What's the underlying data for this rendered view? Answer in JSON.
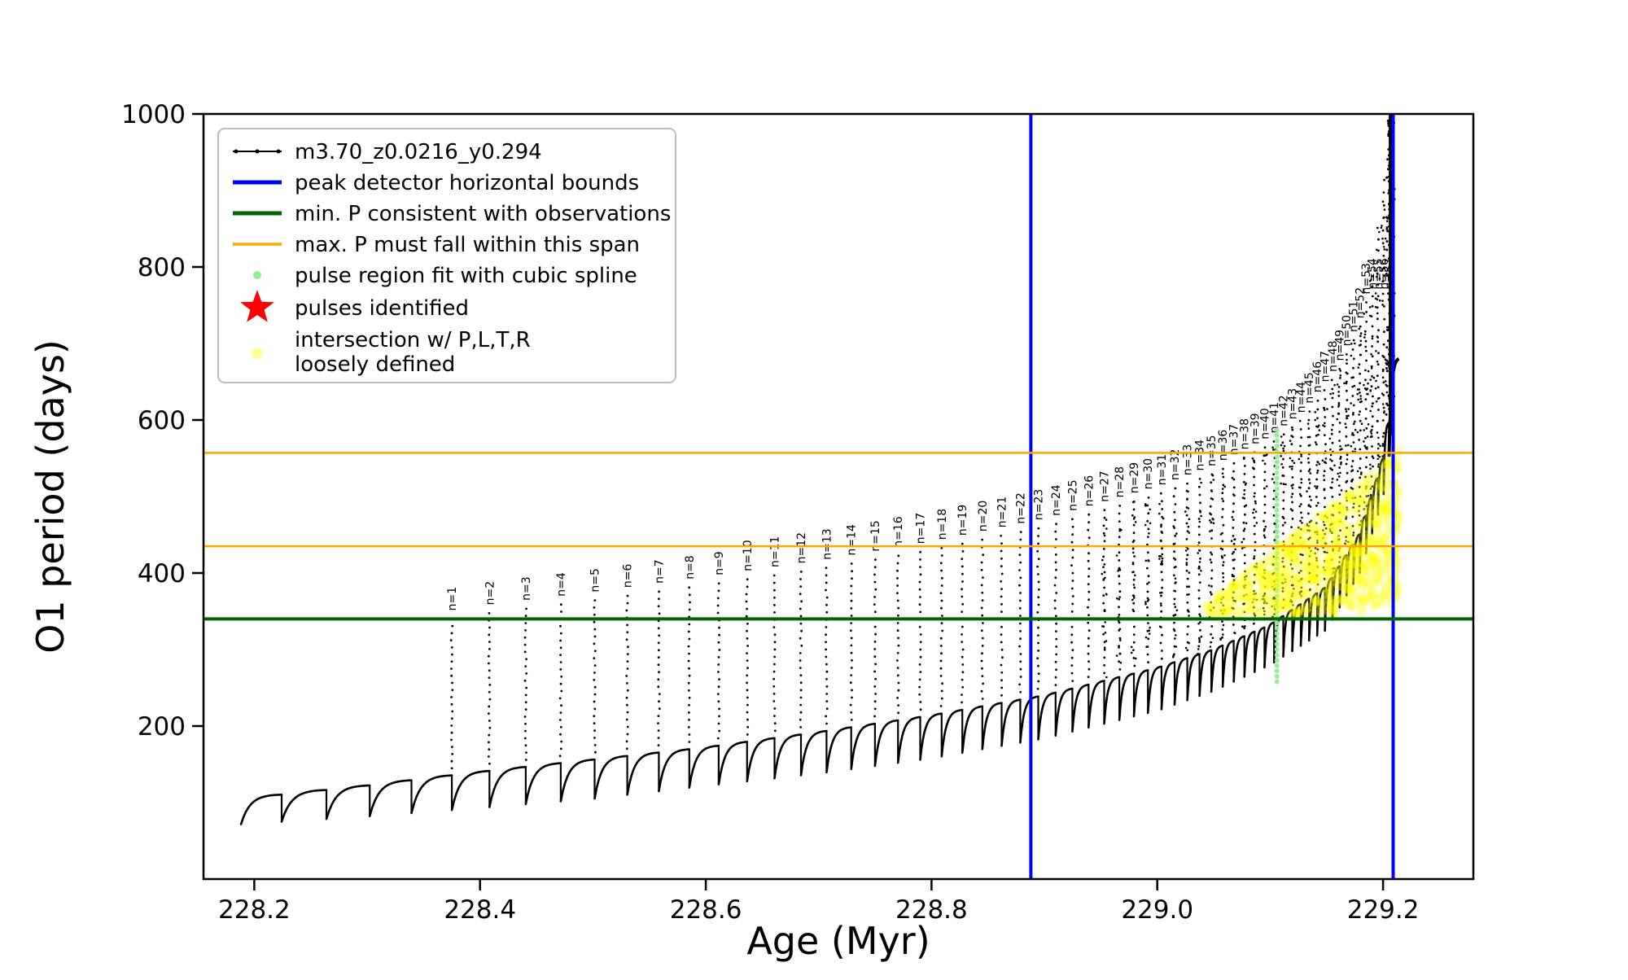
{
  "chart_data": {
    "type": "scatter",
    "title": "",
    "xlabel": "Age (Myr)",
    "ylabel": "O1 period (days)",
    "xlim": [
      228.155,
      229.28
    ],
    "ylim": [
      0,
      1000
    ],
    "grid": false,
    "legend_position": "upper-left",
    "xticks": [
      {
        "v": 228.2,
        "label": "228.2"
      },
      {
        "v": 228.4,
        "label": "228.4"
      },
      {
        "v": 228.6,
        "label": "228.6"
      },
      {
        "v": 228.8,
        "label": "228.8"
      },
      {
        "v": 229.0,
        "label": "229.0"
      },
      {
        "v": 229.2,
        "label": "229.2"
      }
    ],
    "yticks": [
      {
        "v": 200,
        "label": "200"
      },
      {
        "v": 400,
        "label": "400"
      },
      {
        "v": 600,
        "label": "600"
      },
      {
        "v": 800,
        "label": "800"
      },
      {
        "v": 1000,
        "label": "1000"
      }
    ],
    "colors": {
      "curve": "#000000",
      "bounds": "#0000ff",
      "min_p": "#006400",
      "max_p": "#ffa500",
      "spline": "#90ee90",
      "pulses": "#ff0000",
      "intersection": "#ffff00"
    },
    "legend": [
      {
        "label": "m3.70_z0.0216_y0.294",
        "symbol": "line-marker",
        "color": "#000000"
      },
      {
        "label": "peak detector horizontal bounds",
        "symbol": "line",
        "color": "#0000ff"
      },
      {
        "label": "min. P consistent with observations",
        "symbol": "line",
        "color": "#006400"
      },
      {
        "label": "max. P must fall within this span",
        "symbol": "line",
        "color": "#ffa500"
      },
      {
        "label": "pulse region fit with cubic spline",
        "symbol": "dot",
        "color": "#90ee90"
      },
      {
        "label": "pulses identified",
        "symbol": "star",
        "color": "#ff0000"
      },
      {
        "label": "intersection w/ P,L,T,R loosely defined",
        "label_lines": [
          "intersection w/ P,L,T,R",
          "loosely defined"
        ],
        "symbol": "pale-dot",
        "color": "#ffff00"
      }
    ],
    "vlines": [
      228.888,
      229.209
    ],
    "hlines": [
      {
        "name": "min-p-line",
        "y": 340,
        "color": "#006400",
        "width": 4
      },
      {
        "name": "max-p-span-lower-line",
        "y": 435,
        "color": "#ffa500",
        "width": 2.5
      },
      {
        "name": "max-p-span-upper-line",
        "y": 557,
        "color": "#ffa500",
        "width": 2.5
      }
    ],
    "series": {
      "name": "m3.70_z0.0216_y0.294",
      "pulse_label_prefix": "n=",
      "pulse_params": {
        "x_first": 228.375,
        "interval_first": 0.0345,
        "ratio": 0.9655,
        "count": 57,
        "pre": 4
      },
      "base_envelope": [
        [
          228.17,
          102
        ],
        [
          228.3,
          122
        ],
        [
          228.4,
          140
        ],
        [
          228.5,
          156
        ],
        [
          228.6,
          172
        ],
        [
          228.7,
          192
        ],
        [
          228.8,
          214
        ],
        [
          228.9,
          240
        ],
        [
          229.0,
          276
        ],
        [
          229.05,
          300
        ],
        [
          229.1,
          332
        ],
        [
          229.15,
          382
        ],
        [
          229.18,
          452
        ],
        [
          229.2,
          545
        ],
        [
          229.214,
          680
        ]
      ],
      "dip_envelope": [
        [
          228.17,
          70
        ],
        [
          228.3,
          82
        ],
        [
          228.4,
          93
        ],
        [
          228.5,
          105
        ],
        [
          228.6,
          122
        ],
        [
          228.7,
          138
        ],
        [
          228.8,
          158
        ],
        [
          228.9,
          184
        ],
        [
          229.0,
          220
        ],
        [
          229.05,
          246
        ],
        [
          229.1,
          280
        ],
        [
          229.15,
          326
        ],
        [
          229.18,
          402
        ],
        [
          229.2,
          498
        ],
        [
          229.214,
          640
        ]
      ],
      "peak_envelope": [
        [
          228.17,
          300
        ],
        [
          228.3,
          322
        ],
        [
          228.4,
          346
        ],
        [
          228.5,
          364
        ],
        [
          228.6,
          384
        ],
        [
          228.7,
          405
        ],
        [
          228.8,
          430
        ],
        [
          228.9,
          460
        ],
        [
          229.0,
          502
        ],
        [
          229.05,
          530
        ],
        [
          229.1,
          568
        ],
        [
          229.13,
          602
        ],
        [
          229.16,
          662
        ],
        [
          229.18,
          724
        ],
        [
          229.19,
          784
        ],
        [
          229.2,
          906
        ],
        [
          229.206,
          1000
        ],
        [
          229.214,
          1000
        ]
      ],
      "end_x": 229.214
    },
    "spline_column": {
      "x": 229.106,
      "y_min": 258,
      "y_max": 588,
      "step": 7
    },
    "intersection_region": {
      "x_min": 229.03,
      "x_max": 229.214,
      "y_bottom": 343,
      "top_slope": 1190,
      "y_cap": 562,
      "bottom_rise_from": 229.17,
      "bottom_slope": 500,
      "count": 800
    }
  }
}
